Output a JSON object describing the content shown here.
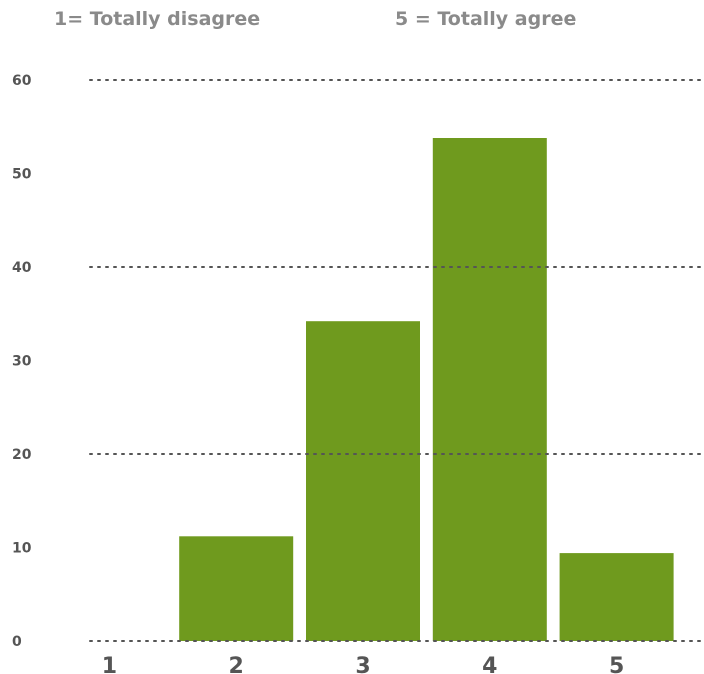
{
  "legend": {
    "low": "1= Totally disagree",
    "high": "5 = Totally agree"
  },
  "chart_data": {
    "type": "bar",
    "title": "",
    "xlabel": "",
    "ylabel": "",
    "categories": [
      "1",
      "2",
      "3",
      "4",
      "5"
    ],
    "values": [
      0,
      11.2,
      34.2,
      53.8,
      9.4
    ],
    "ylim": [
      0,
      60
    ],
    "yticks": [
      "0",
      "10",
      "20",
      "30",
      "40",
      "50",
      "60"
    ],
    "gridlines": [
      20,
      40,
      60
    ],
    "grid_style": "dotted",
    "bar_color": "#6f9a1e",
    "text_color": "#555555",
    "legend_color": "#8a8a8a",
    "grid_color": "#555555"
  }
}
